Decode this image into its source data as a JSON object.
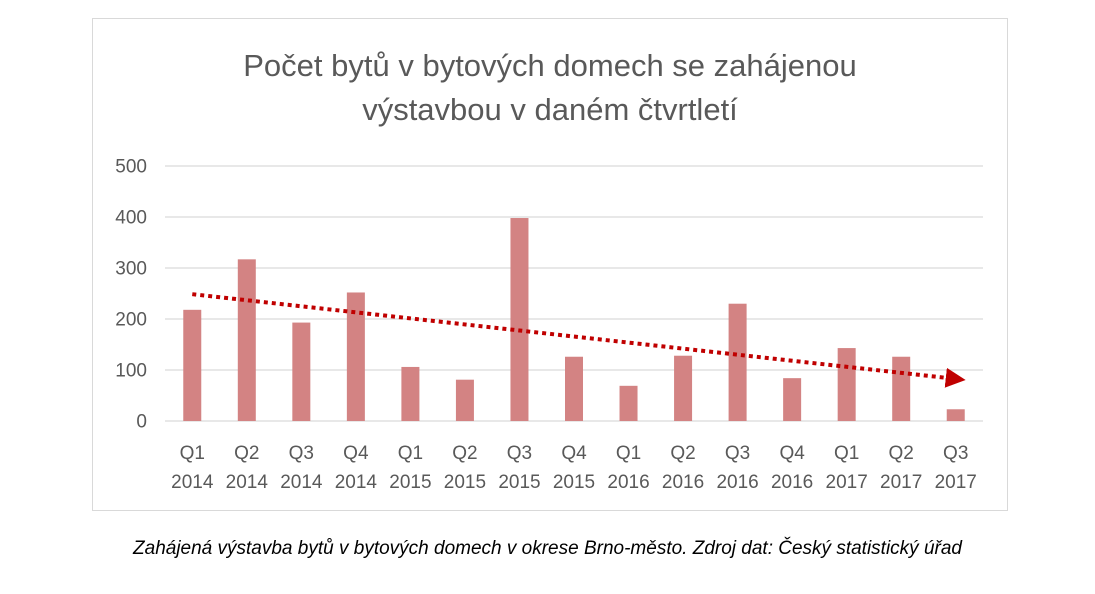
{
  "chart_data": {
    "type": "bar",
    "title_lines": [
      "Počet bytů v bytových domech se zahájenou",
      "výstavbou v daném čtvrtletí"
    ],
    "categories": [
      [
        "Q1",
        "2014"
      ],
      [
        "Q2",
        "2014"
      ],
      [
        "Q3",
        "2014"
      ],
      [
        "Q4",
        "2014"
      ],
      [
        "Q1",
        "2015"
      ],
      [
        "Q2",
        "2015"
      ],
      [
        "Q3",
        "2015"
      ],
      [
        "Q4",
        "2015"
      ],
      [
        "Q1",
        "2016"
      ],
      [
        "Q2",
        "2016"
      ],
      [
        "Q3",
        "2016"
      ],
      [
        "Q4",
        "2016"
      ],
      [
        "Q1",
        "2017"
      ],
      [
        "Q2",
        "2017"
      ],
      [
        "Q3",
        "2017"
      ]
    ],
    "values": [
      218,
      317,
      193,
      252,
      106,
      81,
      398,
      126,
      69,
      128,
      230,
      84,
      143,
      126,
      23
    ],
    "ylim": [
      0,
      500
    ],
    "yticks": [
      "0",
      "100",
      "200",
      "300",
      "400",
      "500"
    ],
    "grid": true,
    "trendline": {
      "type": "linear",
      "style": "dotted",
      "arrow": true
    },
    "colors": {
      "bar": "#d38383",
      "trend": "#c00000",
      "grid": "#d9d9d9",
      "axis_text": "#595959"
    }
  },
  "caption": "Zahájená výstavba bytů v bytových domech v okrese Brno-město. Zdroj dat: Český statistický úřad"
}
